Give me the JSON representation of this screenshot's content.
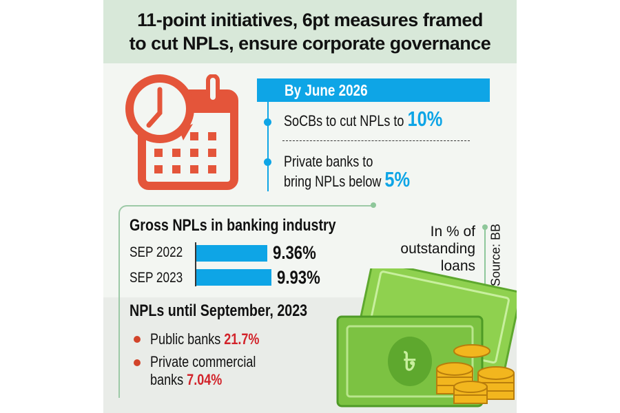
{
  "title": {
    "line1": "11-point initiatives, 6pt measures framed",
    "line2": "to cut NPLs, ensure corporate governance"
  },
  "targets": {
    "heading": "By June 2026",
    "items": [
      {
        "text": "SoCBs to cut NPLs to ",
        "value": "10%"
      },
      {
        "text1": "Private banks to",
        "text2": "bring NPLs below ",
        "value": "5%"
      }
    ]
  },
  "chart_data": {
    "type": "bar",
    "title": "Gross NPLs in banking industry",
    "categories": [
      "SEP 2022",
      "SEP 2023"
    ],
    "values": [
      9.36,
      9.93
    ],
    "value_labels": [
      "9.36%",
      "9.93%"
    ],
    "unit_note": [
      "In % of",
      "outstanding",
      "loans"
    ],
    "source": "Source: BB"
  },
  "npl_sept": {
    "heading": "NPLs until September, 2023",
    "items": [
      {
        "label": "Public banks ",
        "value": "21.7%"
      },
      {
        "label1": "Private commercial",
        "label2": "banks ",
        "value": "7.04%"
      }
    ]
  },
  "colors": {
    "accent": "#0ea5e6",
    "red": "#d2232a",
    "icon": "#e4553a",
    "money": "#7cc242"
  },
  "icons": [
    "calendar-clock-icon",
    "taka-banknote-icon",
    "gold-coins-icon"
  ]
}
